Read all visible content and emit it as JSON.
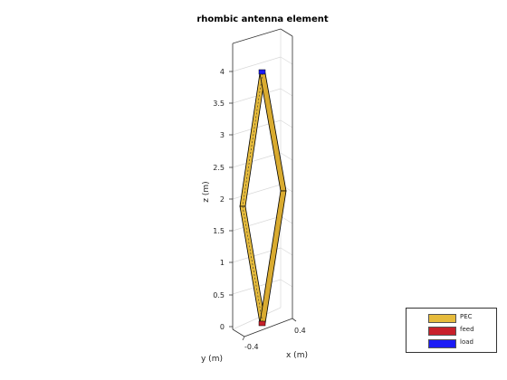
{
  "title": "rhombic antenna element",
  "axes": {
    "zlabel": "z (m)",
    "xlabel": "x (m)",
    "ylabel": "y (m)",
    "z_ticks": [
      "0",
      "0.5",
      "1",
      "1.5",
      "2",
      "2.5",
      "3",
      "3.5",
      "4"
    ],
    "x_tick": "0.4",
    "y_tick": "-0.4"
  },
  "legend": {
    "items": [
      {
        "label": "PEC",
        "color": "#e6bb3c"
      },
      {
        "label": "feed",
        "color": "#c8202a"
      },
      {
        "label": "load",
        "color": "#1b1bf5"
      }
    ]
  },
  "colors": {
    "conductor": "#e6bb3c",
    "conductor_edge": "#000000",
    "feed": "#c8202a",
    "load": "#1b1bf5",
    "grid": "#d9d9d9",
    "box": "#333333"
  }
}
